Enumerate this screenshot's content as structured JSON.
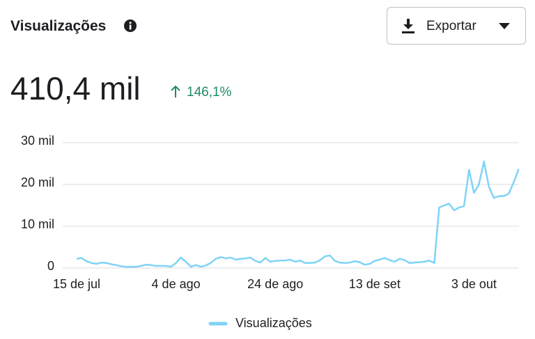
{
  "header": {
    "title": "Visualizações",
    "button": "Exportar"
  },
  "summary": {
    "value": "410,4 mil",
    "change": "146,1%"
  },
  "chart_data": {
    "type": "line",
    "categories": [
      "15 de jul",
      null,
      null,
      null,
      null,
      null,
      null,
      null,
      null,
      null,
      null,
      null,
      null,
      null,
      null,
      null,
      null,
      null,
      null,
      null,
      "4 de ago",
      null,
      null,
      null,
      null,
      null,
      null,
      null,
      null,
      null,
      null,
      null,
      null,
      null,
      null,
      null,
      null,
      null,
      null,
      null,
      "24 de ago",
      null,
      null,
      null,
      null,
      null,
      null,
      null,
      null,
      null,
      null,
      null,
      null,
      null,
      null,
      null,
      null,
      null,
      null,
      null,
      "13 de set",
      null,
      null,
      null,
      null,
      null,
      null,
      null,
      null,
      null,
      null,
      null,
      null,
      null,
      null,
      null,
      null,
      null,
      null,
      null,
      "3 de out",
      null,
      null,
      null,
      null,
      null,
      null,
      null,
      null,
      null
    ],
    "series": [
      {
        "name": "Visualizações",
        "color": "#7fd3f7",
        "values": [
          2200,
          2400,
          1600,
          1200,
          1000,
          1300,
          1200,
          900,
          700,
          400,
          300,
          300,
          300,
          500,
          800,
          700,
          500,
          500,
          500,
          300,
          1200,
          2500,
          1500,
          300,
          700,
          300,
          600,
          1200,
          2200,
          2600,
          2300,
          2500,
          2000,
          2200,
          2300,
          2500,
          1700,
          1300,
          2400,
          1500,
          1700,
          1800,
          1800,
          2000,
          1500,
          1800,
          1200,
          1200,
          1300,
          1900,
          2800,
          3000,
          1700,
          1300,
          1200,
          1300,
          1600,
          1400,
          800,
          1000,
          1700,
          2000,
          2400,
          1900,
          1500,
          2200,
          1900,
          1200,
          1300,
          1400,
          1500,
          1800,
          1200,
          14500,
          15000,
          15400,
          13800,
          14500,
          14800,
          23500,
          18000,
          20000,
          25500,
          19500,
          16800,
          17200,
          17200,
          17800,
          20500,
          23700
        ]
      }
    ],
    "ylim": [
      0,
      30000
    ],
    "yticks": [
      0,
      {
        "value": 10000,
        "label": "10 mil"
      },
      {
        "value": 20000,
        "label": "20 mil"
      },
      {
        "value": 30000,
        "label": "30 mil"
      }
    ],
    "grid": true,
    "legend": "bottom"
  }
}
